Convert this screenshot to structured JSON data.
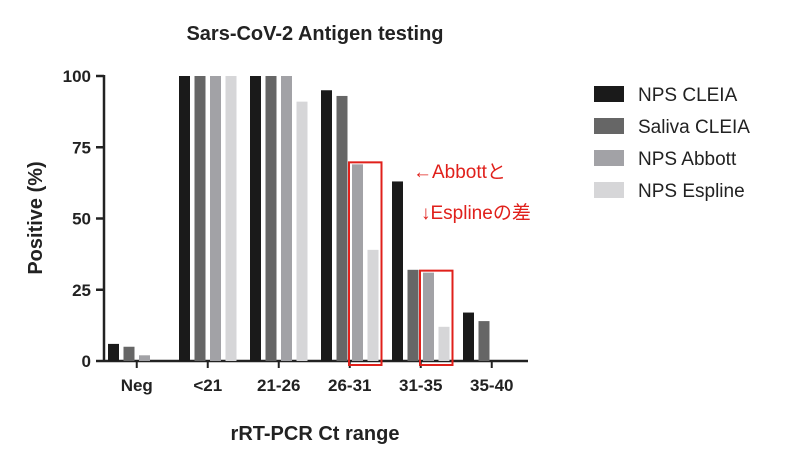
{
  "chart_data": {
    "type": "bar",
    "title": "Sars-CoV-2 Antigen testing",
    "xlabel": "rRT-PCR Ct range",
    "ylabel": "Positive (%)",
    "ylim": [
      0,
      100
    ],
    "yticks": [
      "0",
      "25",
      "50",
      "75",
      "100"
    ],
    "categories": [
      "Neg",
      "<21",
      "21-26",
      "26-31",
      "31-35",
      "35-40"
    ],
    "series": [
      {
        "name": "NPS CLEIA",
        "color": "#1a1a1a",
        "values": [
          6,
          100,
          100,
          95,
          63,
          17
        ]
      },
      {
        "name": "Saliva CLEIA",
        "color": "#666666",
        "values": [
          5,
          100,
          100,
          93,
          32,
          14
        ]
      },
      {
        "name": "NPS Abbott",
        "color": "#a2a2a6",
        "values": [
          2,
          100,
          100,
          69,
          31,
          null
        ]
      },
      {
        "name": "NPS Espline",
        "color": "#d6d6d8",
        "values": [
          0,
          100,
          91,
          39,
          12,
          null
        ]
      }
    ],
    "legend_position": "right",
    "annotations": [
      {
        "text": "←Abbottと",
        "color": "#e0201b"
      },
      {
        "text": "↓Esplineの差",
        "color": "#e0201b"
      }
    ],
    "highlight_boxes": [
      {
        "category": "26-31",
        "series": [
          "NPS Abbott",
          "NPS Espline"
        ],
        "color": "#e0201b"
      },
      {
        "category": "31-35",
        "series": [
          "NPS Abbott",
          "NPS Espline"
        ],
        "color": "#e0201b"
      }
    ]
  }
}
